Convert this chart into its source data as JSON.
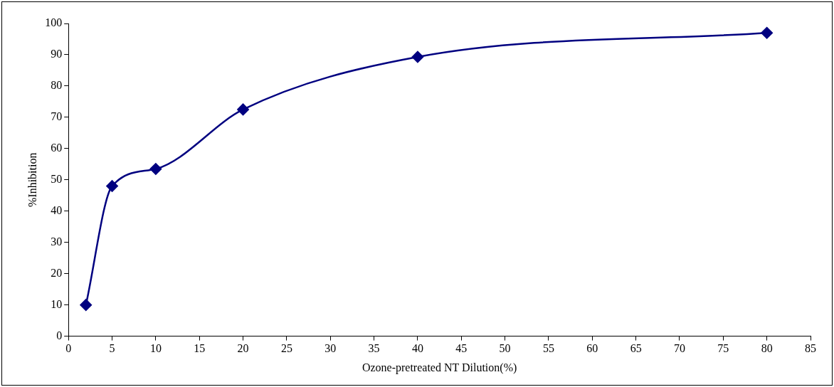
{
  "chart_data": {
    "type": "line",
    "xlabel": "Ozone-pretreated NT Dilution(%)",
    "ylabel": "%Inhibition",
    "x": [
      2,
      5,
      10,
      20,
      40,
      80
    ],
    "series": [
      {
        "color": "#000080",
        "values": [
          10,
          48,
          53.5,
          72.5,
          89.3,
          97
        ]
      }
    ],
    "xlim": [
      0,
      85
    ],
    "xticks": [
      0,
      5,
      10,
      15,
      20,
      25,
      30,
      35,
      40,
      45,
      50,
      55,
      60,
      65,
      70,
      75,
      80,
      85
    ],
    "ylim": [
      0,
      100
    ],
    "yticks": [
      0,
      10,
      20,
      30,
      40,
      50,
      60,
      70,
      80,
      90,
      100
    ],
    "grid": false,
    "legend": false,
    "marker": "diamond",
    "line_style": "solid"
  }
}
